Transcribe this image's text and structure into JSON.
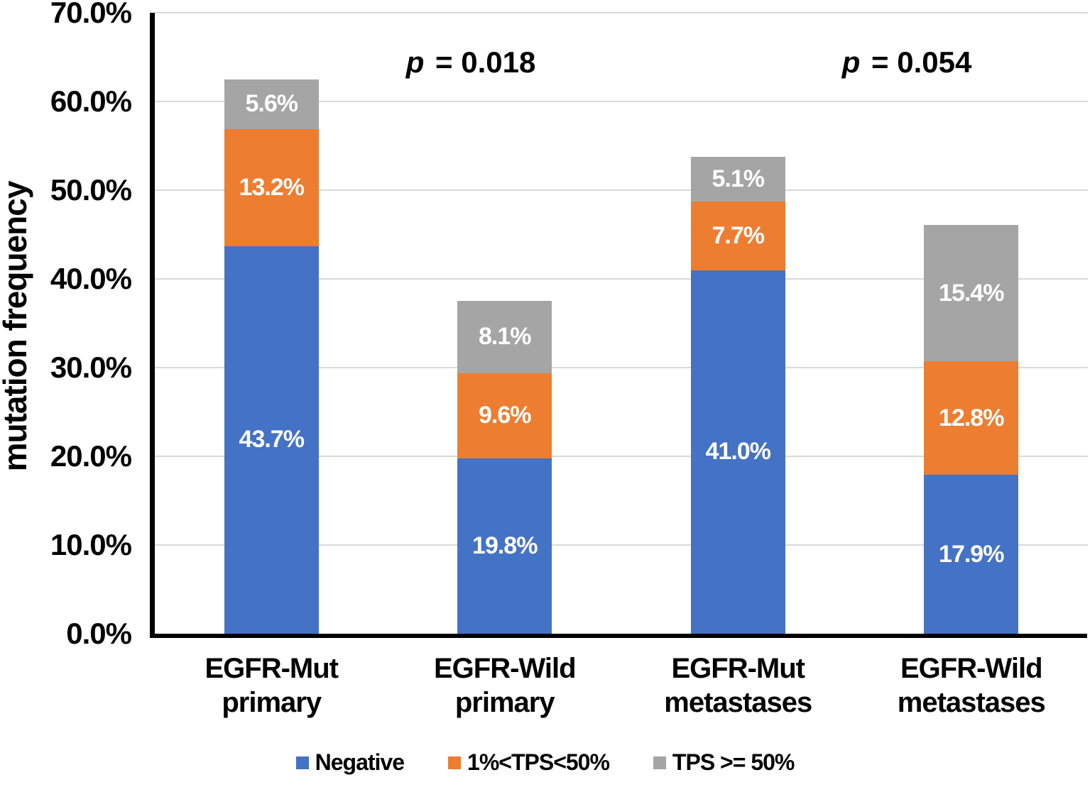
{
  "chart_data": {
    "type": "bar",
    "stacked": true,
    "title": "",
    "xlabel": "",
    "ylabel": "mutation frequency",
    "ylim": [
      0,
      70
    ],
    "grid": true,
    "gridline_color": "#D9D9D9",
    "axis_color": "#000000",
    "legend_position": "bottom",
    "yticks": [
      {
        "value": 0,
        "label": "0.0%"
      },
      {
        "value": 10,
        "label": "10.0%"
      },
      {
        "value": 20,
        "label": "20.0%"
      },
      {
        "value": 30,
        "label": "30.0%"
      },
      {
        "value": 40,
        "label": "40.0%"
      },
      {
        "value": 50,
        "label": "50.0%"
      },
      {
        "value": 60,
        "label": "60.0%"
      },
      {
        "value": 70,
        "label": "70.0%"
      }
    ],
    "categories": [
      {
        "label": "EGFR-Mut primary",
        "lines": [
          "EGFR-Mut",
          "primary"
        ]
      },
      {
        "label": "EGFR-Wild primary",
        "lines": [
          "EGFR-Wild",
          "primary"
        ]
      },
      {
        "label": "EGFR-Mut metastases",
        "lines": [
          "EGFR-Mut",
          "metastases"
        ]
      },
      {
        "label": "EGFR-Wild metastases",
        "lines": [
          "EGFR-Wild",
          "metastases"
        ]
      }
    ],
    "series": [
      {
        "name": "Negative",
        "color": "#4472C4",
        "values": [
          43.7,
          19.8,
          41.0,
          17.9
        ],
        "labels": [
          "43.7%",
          "19.8%",
          "41.0%",
          "17.9%"
        ]
      },
      {
        "name": "1%<TPS<50%",
        "color": "#ED7D31",
        "values": [
          13.2,
          9.6,
          7.7,
          12.8
        ],
        "labels": [
          "13.2%",
          "9.6%",
          "7.7%",
          "12.8%"
        ]
      },
      {
        "name": "TPS >= 50%",
        "color": "#A5A5A5",
        "values": [
          5.6,
          8.1,
          5.1,
          15.4
        ],
        "labels": [
          "5.6%",
          "8.1%",
          "5.1%",
          "15.4%"
        ]
      }
    ],
    "annotations": [
      {
        "italic": "p",
        "text": "= 0.018",
        "x": 663,
        "y": 90
      },
      {
        "italic": "p",
        "text": "= 0.054",
        "x": 1277,
        "y": 90
      }
    ]
  }
}
